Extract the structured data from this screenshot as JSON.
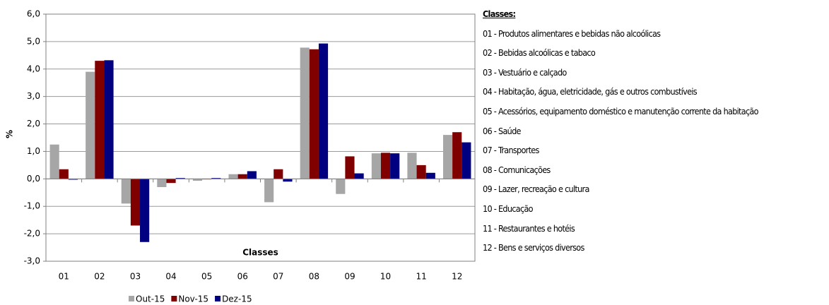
{
  "chart_data": {
    "type": "bar",
    "xlabel": "Classes",
    "ylabel": "%",
    "categories": [
      "01",
      "02",
      "03",
      "04",
      "05",
      "06",
      "07",
      "08",
      "09",
      "10",
      "11",
      "12"
    ],
    "series": [
      {
        "name": "Out-15",
        "color": "#a6a6a6",
        "values": [
          1.25,
          3.9,
          -0.9,
          -0.3,
          -0.07,
          0.17,
          -0.85,
          4.78,
          -0.55,
          0.93,
          0.95,
          1.6
        ]
      },
      {
        "name": "Nov-15",
        "color": "#800000",
        "values": [
          0.35,
          4.3,
          -1.7,
          -0.15,
          -0.02,
          0.17,
          0.35,
          4.72,
          0.82,
          0.95,
          0.5,
          1.7
        ]
      },
      {
        "name": "Dez-15",
        "color": "#000080",
        "values": [
          -0.03,
          4.32,
          -2.3,
          0.03,
          0.03,
          0.28,
          -0.1,
          4.93,
          0.2,
          0.93,
          0.22,
          1.33
        ]
      }
    ],
    "ylim": [
      -3,
      6
    ],
    "yticks": [
      {
        "value": -3,
        "label": "-3,0"
      },
      {
        "value": -2,
        "label": "-2,0"
      },
      {
        "value": -1,
        "label": "-1,0"
      },
      {
        "value": 0,
        "label": "0,0"
      },
      {
        "value": 1,
        "label": "1,0"
      },
      {
        "value": 2,
        "label": "2,0"
      },
      {
        "value": 3,
        "label": "3,0"
      },
      {
        "value": 4,
        "label": "4,0"
      },
      {
        "value": 5,
        "label": "5,0"
      },
      {
        "value": 6,
        "label": "6,0"
      }
    ],
    "grid": true,
    "legend": "bottom"
  },
  "classes_panel": {
    "title": "Classes:",
    "items": [
      "01 - Produtos alimentares e bebidas não alcoólicas",
      "02 - Bebidas alcoólicas e tabaco",
      "03 - Vestuário e calçado",
      "04 - Habitação, água, eletricidade, gás e outros combustíveis",
      "05 - Acessórios, equipamento doméstico e manutenção corrente da habitação",
      "06 - Saúde",
      "07 - Transportes",
      "08 - Comunicações",
      "09 - Lazer, recreação e cultura",
      "10 - Educação",
      "11 - Restaurantes e hotéis",
      "12 - Bens e serviços diversos"
    ]
  }
}
